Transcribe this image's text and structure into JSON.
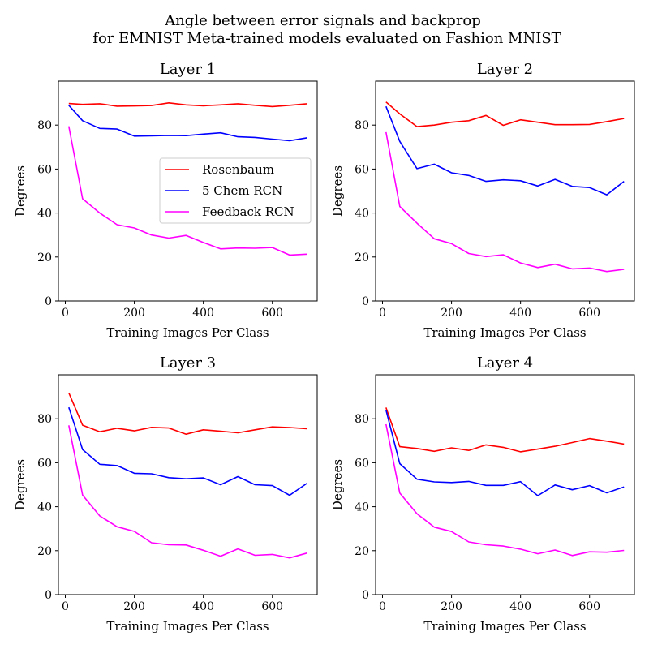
{
  "figure": {
    "title_line1": "Angle between error signals and backprop",
    "title_line2": "for EMNIST Meta-trained models evaluated on Fashion MNIST"
  },
  "chart_data": [
    {
      "type": "line",
      "title": "Layer 1",
      "xlabel": "Training Images Per Class",
      "ylabel": "Degrees",
      "xlim": [
        -20,
        730
      ],
      "ylim": [
        0,
        100
      ],
      "xticks": [
        0,
        200,
        400,
        600
      ],
      "yticks": [
        0,
        20,
        40,
        60,
        80
      ],
      "legend": "center-right",
      "x": [
        10,
        50,
        100,
        150,
        200,
        250,
        300,
        350,
        400,
        450,
        500,
        550,
        600,
        650,
        700
      ],
      "series": [
        {
          "name": "Rosenbaum",
          "color": "#ff0000",
          "values": [
            89.8,
            89.4,
            89.7,
            88.6,
            88.7,
            88.9,
            90.1,
            89.2,
            88.8,
            89.2,
            89.7,
            89.0,
            88.4,
            89.0,
            89.7
          ]
        },
        {
          "name": "5 Chem RCN",
          "color": "#0000ff",
          "values": [
            89.0,
            82.0,
            78.5,
            78.2,
            75.0,
            75.1,
            75.3,
            75.2,
            75.9,
            76.5,
            74.7,
            74.4,
            73.6,
            72.9,
            74.2
          ]
        },
        {
          "name": "Feedback RCN",
          "color": "#ff00ff",
          "values": [
            79.5,
            46.5,
            40.0,
            34.7,
            33.2,
            30.0,
            28.6,
            29.8,
            26.6,
            23.7,
            24.1,
            24.0,
            24.3,
            20.9,
            21.3
          ]
        }
      ]
    },
    {
      "type": "line",
      "title": "Layer 2",
      "xlabel": "Training Images Per Class",
      "ylabel": "Degrees",
      "xlim": [
        -20,
        730
      ],
      "ylim": [
        0,
        100
      ],
      "xticks": [
        0,
        200,
        400,
        600
      ],
      "yticks": [
        0,
        20,
        40,
        60,
        80
      ],
      "x": [
        10,
        50,
        100,
        150,
        200,
        250,
        300,
        350,
        400,
        450,
        500,
        550,
        600,
        650,
        700
      ],
      "series": [
        {
          "name": "Rosenbaum",
          "color": "#ff0000",
          "values": [
            90.5,
            85.1,
            79.3,
            80.0,
            81.3,
            82.0,
            84.4,
            79.9,
            82.4,
            81.3,
            80.2,
            80.2,
            80.3,
            81.6,
            83.0
          ]
        },
        {
          "name": "5 Chem RCN",
          "color": "#0000ff",
          "values": [
            88.5,
            72.6,
            60.2,
            62.2,
            58.3,
            57.1,
            54.4,
            55.1,
            54.7,
            52.3,
            55.3,
            52.1,
            51.6,
            48.3,
            54.4
          ]
        },
        {
          "name": "Feedback RCN",
          "color": "#ff00ff",
          "values": [
            76.8,
            43.0,
            35.4,
            28.3,
            26.1,
            21.6,
            20.2,
            21.0,
            17.3,
            15.2,
            16.7,
            14.6,
            15.0,
            13.4,
            14.4
          ]
        }
      ]
    },
    {
      "type": "line",
      "title": "Layer 3",
      "xlabel": "Training Images Per Class",
      "ylabel": "Degrees",
      "xlim": [
        -20,
        730
      ],
      "ylim": [
        0,
        100
      ],
      "xticks": [
        0,
        200,
        400,
        600
      ],
      "yticks": [
        0,
        20,
        40,
        60,
        80
      ],
      "x": [
        10,
        50,
        100,
        150,
        200,
        250,
        300,
        350,
        400,
        450,
        500,
        550,
        600,
        650,
        700
      ],
      "series": [
        {
          "name": "Rosenbaum",
          "color": "#ff0000",
          "values": [
            91.8,
            77.1,
            74.1,
            75.7,
            74.5,
            76.1,
            75.8,
            73.0,
            75.0,
            74.3,
            73.6,
            75.0,
            76.3,
            76.0,
            75.5
          ]
        },
        {
          "name": "5 Chem RCN",
          "color": "#0000ff",
          "values": [
            85.2,
            66.0,
            59.3,
            58.7,
            55.2,
            55.0,
            53.2,
            52.7,
            53.1,
            50.0,
            53.7,
            50.0,
            49.6,
            45.2,
            50.6
          ]
        },
        {
          "name": "Feedback RCN",
          "color": "#ff00ff",
          "values": [
            77.0,
            45.3,
            35.8,
            30.9,
            28.8,
            23.6,
            22.7,
            22.6,
            20.2,
            17.5,
            20.8,
            17.9,
            18.3,
            16.7,
            18.9
          ]
        }
      ]
    },
    {
      "type": "line",
      "title": "Layer 4",
      "xlabel": "Training Images Per Class",
      "ylabel": "Degrees",
      "xlim": [
        -20,
        730
      ],
      "ylim": [
        0,
        100
      ],
      "xticks": [
        0,
        200,
        400,
        600
      ],
      "yticks": [
        0,
        20,
        40,
        60,
        80
      ],
      "x": [
        10,
        50,
        100,
        150,
        200,
        250,
        300,
        350,
        400,
        450,
        500,
        550,
        600,
        650,
        700
      ],
      "series": [
        {
          "name": "Rosenbaum",
          "color": "#ff0000",
          "values": [
            85.1,
            67.3,
            66.5,
            65.2,
            66.8,
            65.6,
            68.1,
            67.0,
            65.0,
            66.2,
            67.5,
            69.2,
            71.0,
            69.8,
            68.5
          ]
        },
        {
          "name": "5 Chem RCN",
          "color": "#0000ff",
          "values": [
            84.0,
            59.6,
            52.5,
            51.3,
            51.0,
            51.5,
            49.7,
            49.7,
            51.4,
            45.0,
            49.9,
            47.7,
            49.6,
            46.3,
            49.0
          ]
        },
        {
          "name": "Feedback RCN",
          "color": "#ff00ff",
          "values": [
            77.5,
            46.2,
            36.8,
            30.7,
            28.7,
            24.0,
            22.7,
            22.1,
            20.7,
            18.6,
            20.3,
            17.8,
            19.5,
            19.3,
            20.1
          ]
        }
      ]
    }
  ]
}
